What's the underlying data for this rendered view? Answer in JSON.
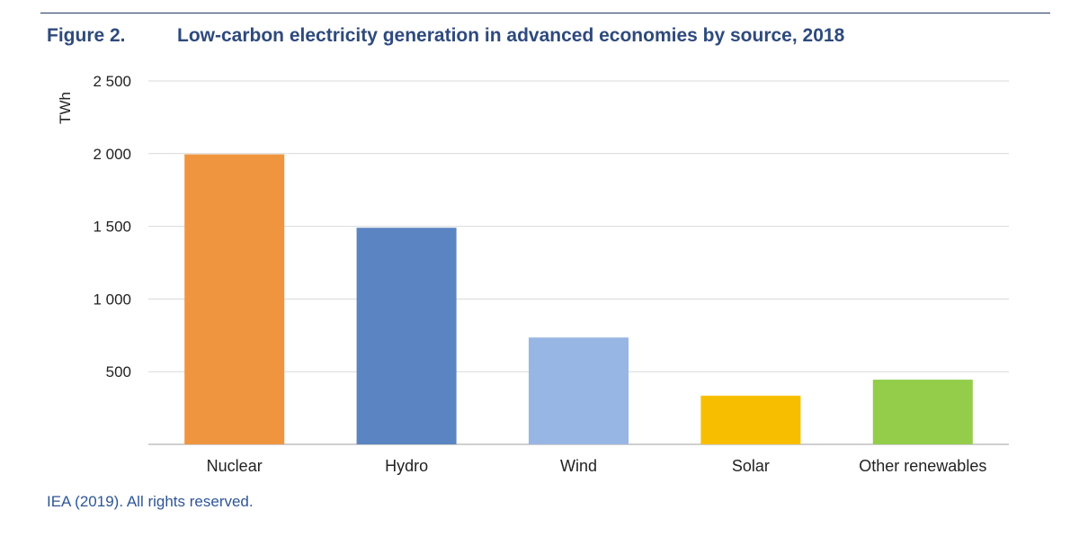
{
  "figure": {
    "label": "Figure 2.",
    "title": "Low-carbon electricity generation in advanced economies by source, 2018"
  },
  "chart_data": {
    "type": "bar",
    "title": "Low-carbon electricity generation in advanced economies by source, 2018",
    "ylabel": "TWh",
    "xlabel": "",
    "ylim": [
      0,
      2500
    ],
    "yticks": [
      500,
      1000,
      1500,
      2000,
      2500
    ],
    "ytick_labels": [
      "500",
      "1 000",
      "1 500",
      "2 000",
      "2 500"
    ],
    "grid": true,
    "legend": "none",
    "categories": [
      "Nuclear",
      "Hydro",
      "Wind",
      "Solar",
      "Other renewables"
    ],
    "values": [
      1995,
      1490,
      735,
      335,
      445
    ],
    "colors": [
      "#f0953f",
      "#5b84c2",
      "#97b6e3",
      "#f7be00",
      "#93cd4a"
    ]
  },
  "source": "IEA (2019). All rights reserved."
}
